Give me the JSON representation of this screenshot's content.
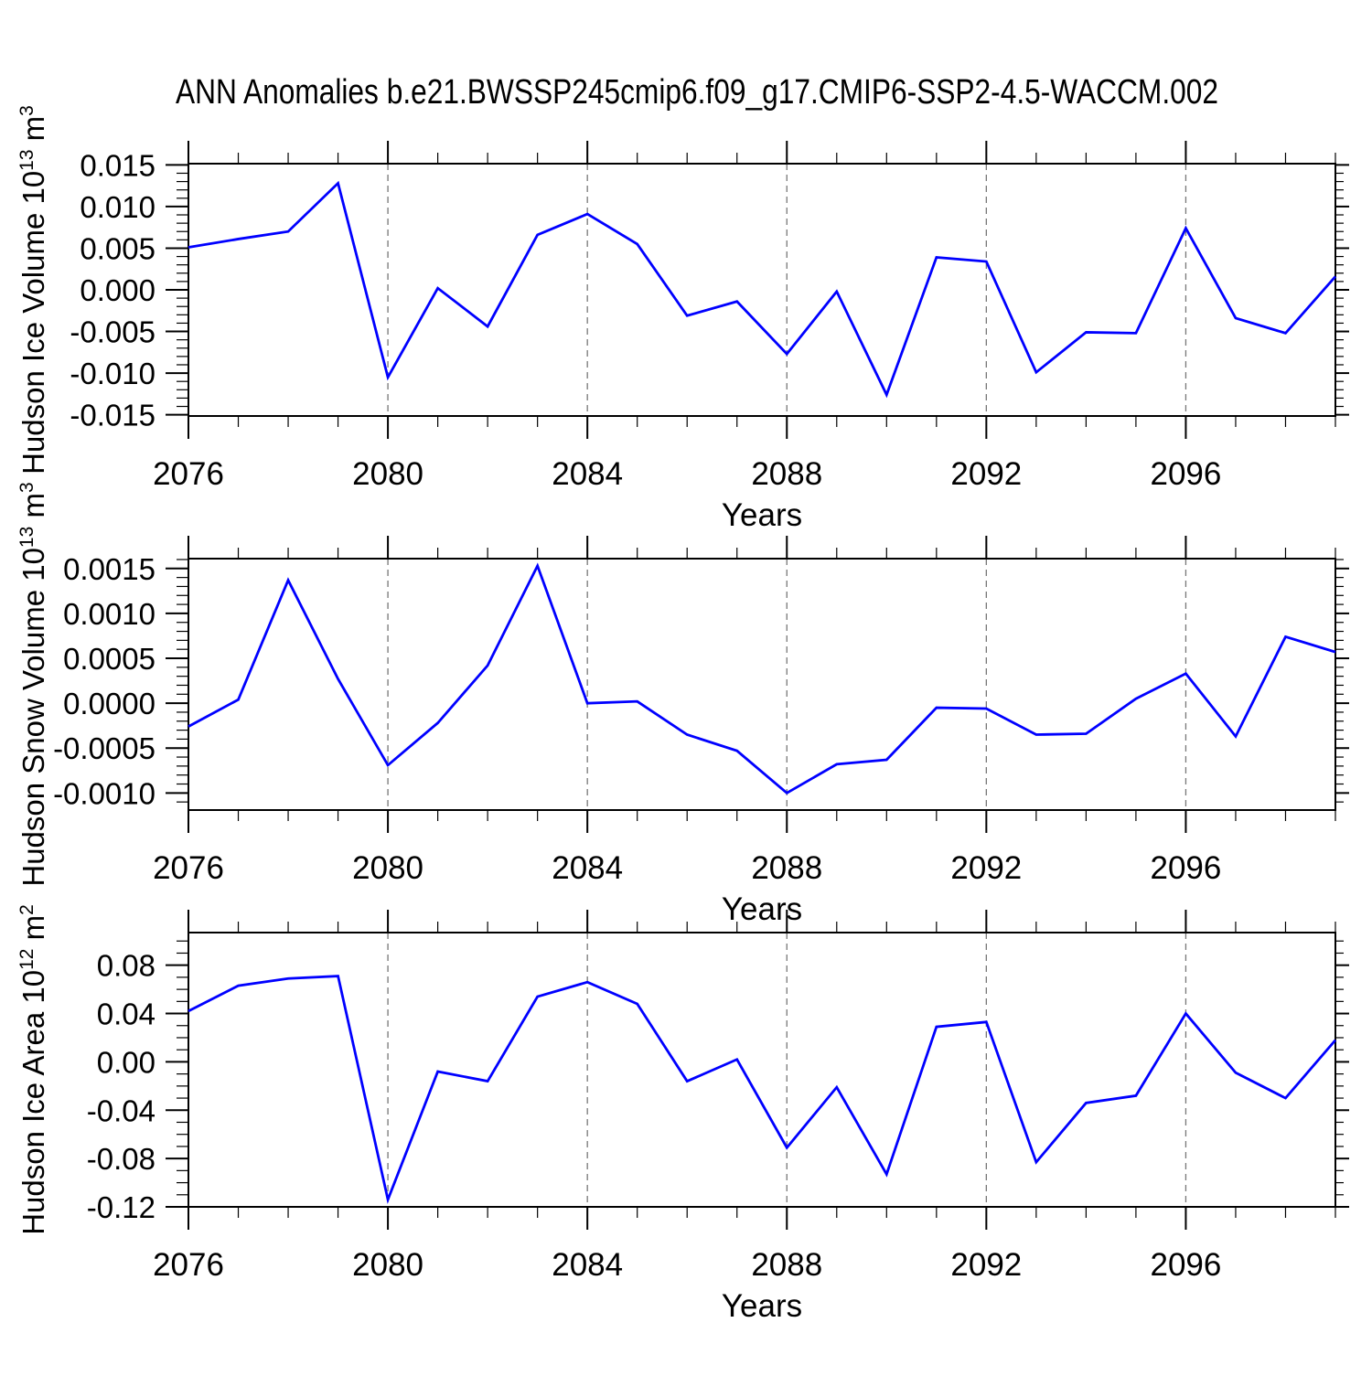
{
  "title": "ANN Anomalies b.e21.BWSSP245cmip6.f09_g17.CMIP6-SSP2-4.5-WACCM.002",
  "colors": {
    "line": "#0000ff",
    "grid": "#777777",
    "axis": "#000000",
    "text": "#000000",
    "background": "#ffffff"
  },
  "x_axis": {
    "label": "Years",
    "range": [
      2076,
      2099
    ],
    "major_ticks": [
      2076,
      2080,
      2084,
      2088,
      2092,
      2096
    ],
    "tick_labels": [
      "2076",
      "2080",
      "2084",
      "2088",
      "2092",
      "2096"
    ],
    "minor_step": 1,
    "gridlines": [
      2080,
      2084,
      2088,
      2092,
      2096
    ],
    "grid_style": "dashed"
  },
  "chart_data": [
    {
      "id": "hudson-ice-volume",
      "type": "line",
      "ylabel_plain": "Hudson Ice Volume 10^13 m^3",
      "ylabel_parts": [
        {
          "text": "Hudson Ice Volume 10",
          "sup": false
        },
        {
          "text": "13",
          "sup": true
        },
        {
          "text": " m",
          "sup": false
        },
        {
          "text": "3",
          "sup": true
        }
      ],
      "xlabel": "Years",
      "ylim": [
        -0.01515,
        0.01515
      ],
      "ytick_values": [
        0.015,
        0.01,
        0.005,
        0.0,
        -0.005,
        -0.01,
        -0.015
      ],
      "ytick_labels": [
        "0.015",
        "0.010",
        "0.005",
        "0.000",
        "-0.005",
        "-0.010",
        "-0.015"
      ],
      "yminor_step": 0.001,
      "years": [
        2076,
        2077,
        2078,
        2079,
        2080,
        2081,
        2082,
        2083,
        2084,
        2085,
        2086,
        2087,
        2088,
        2089,
        2090,
        2091,
        2092,
        2093,
        2094,
        2095,
        2096,
        2097,
        2098,
        2099
      ],
      "values": [
        0.0051,
        0.0061,
        0.007,
        0.0128,
        -0.0105,
        0.0002,
        -0.0044,
        0.0066,
        0.0091,
        0.0055,
        -0.0031,
        -0.0014,
        -0.0077,
        -0.0002,
        -0.0126,
        0.0039,
        0.0034,
        -0.0099,
        -0.0051,
        -0.0052,
        0.0074,
        -0.0034,
        -0.0052,
        0.0016
      ]
    },
    {
      "id": "hudson-snow-volume",
      "type": "line",
      "ylabel_plain": "Hudson Snow Volume 10^13 m^3",
      "ylabel_parts": [
        {
          "text": "Hudson Snow Volume 10",
          "sup": false
        },
        {
          "text": "13",
          "sup": true
        },
        {
          "text": " m",
          "sup": false
        },
        {
          "text": "3",
          "sup": true
        }
      ],
      "xlabel": "Years",
      "ylim": [
        -0.00119,
        0.00161
      ],
      "ytick_values": [
        0.0015,
        0.001,
        0.0005,
        0.0,
        -0.0005,
        -0.001
      ],
      "ytick_labels": [
        "0.0015",
        "0.0010",
        "0.0005",
        "0.0000",
        "-0.0005",
        "-0.0010"
      ],
      "yminor_step": 0.0001,
      "years": [
        2076,
        2077,
        2078,
        2079,
        2080,
        2081,
        2082,
        2083,
        2084,
        2085,
        2086,
        2087,
        2088,
        2089,
        2090,
        2091,
        2092,
        2093,
        2094,
        2095,
        2096,
        2097,
        2098,
        2099
      ],
      "values": [
        -0.00026,
        4e-05,
        0.00137,
        0.00027,
        -0.00069,
        -0.00022,
        0.00042,
        0.00153,
        0.0,
        2e-05,
        -0.00035,
        -0.00053,
        -0.001,
        -0.00068,
        -0.00063,
        -5e-05,
        -6e-05,
        -0.00035,
        -0.00034,
        5e-05,
        0.00033,
        -0.00037,
        0.00074,
        0.00057
      ]
    },
    {
      "id": "hudson-ice-area",
      "type": "line",
      "ylabel_plain": "Hudson Ice Area 10^12 m^2",
      "ylabel_parts": [
        {
          "text": "Hudson Ice Area 10",
          "sup": false
        },
        {
          "text": "12",
          "sup": true
        },
        {
          "text": " m",
          "sup": false
        },
        {
          "text": "2",
          "sup": true
        }
      ],
      "xlabel": "Years",
      "ylim": [
        -0.12,
        0.107
      ],
      "ytick_values": [
        0.08,
        0.04,
        0.0,
        -0.04,
        -0.08,
        -0.12
      ],
      "ytick_labels": [
        "0.08",
        "0.04",
        "0.00",
        "-0.04",
        "-0.08",
        "-0.12"
      ],
      "yminor_step": 0.01,
      "years": [
        2076,
        2077,
        2078,
        2079,
        2080,
        2081,
        2082,
        2083,
        2084,
        2085,
        2086,
        2087,
        2088,
        2089,
        2090,
        2091,
        2092,
        2093,
        2094,
        2095,
        2096,
        2097,
        2098,
        2099
      ],
      "values": [
        0.042,
        0.063,
        0.069,
        0.071,
        -0.114,
        -0.008,
        -0.016,
        0.054,
        0.066,
        0.048,
        -0.016,
        0.002,
        -0.071,
        -0.021,
        -0.093,
        0.029,
        0.033,
        -0.083,
        -0.034,
        -0.028,
        0.04,
        -0.009,
        -0.03,
        0.018
      ]
    }
  ]
}
